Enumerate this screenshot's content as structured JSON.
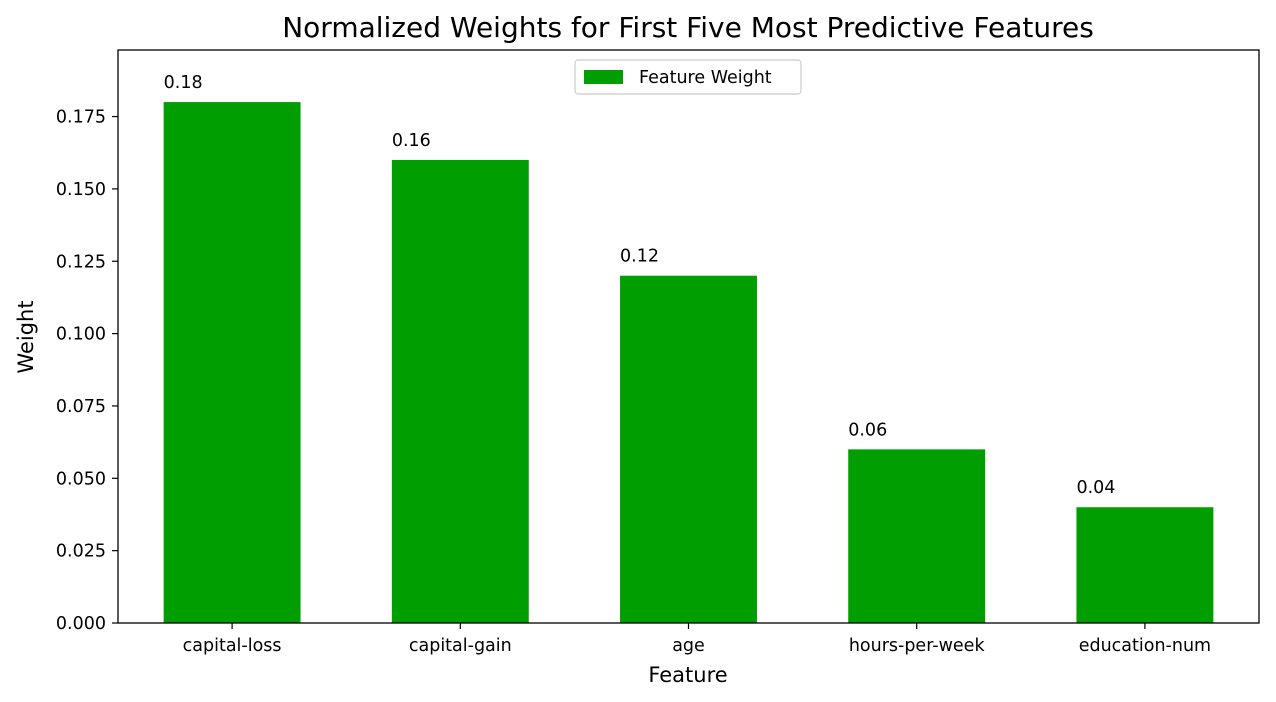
{
  "chart_data": {
    "type": "bar",
    "title": "Normalized Weights for First Five Most Predictive Features",
    "xlabel": "Feature",
    "ylabel": "Weight",
    "categories": [
      "capital-loss",
      "capital-gain",
      "age",
      "hours-per-week",
      "education-num"
    ],
    "series": [
      {
        "name": "Feature Weight",
        "values": [
          0.18,
          0.16,
          0.12,
          0.06,
          0.04
        ],
        "color": "#009e00"
      }
    ],
    "data_labels": [
      "0.18",
      "0.16",
      "0.12",
      "0.06",
      "0.04"
    ],
    "ylim": [
      0,
      0.198
    ],
    "yticks": [
      0.0,
      0.025,
      0.05,
      0.075,
      0.1,
      0.125,
      0.15,
      0.175
    ],
    "ytick_labels": [
      "0.000",
      "0.025",
      "0.050",
      "0.075",
      "0.100",
      "0.125",
      "0.150",
      "0.175"
    ],
    "grid": false,
    "legend_position": "top-center"
  }
}
